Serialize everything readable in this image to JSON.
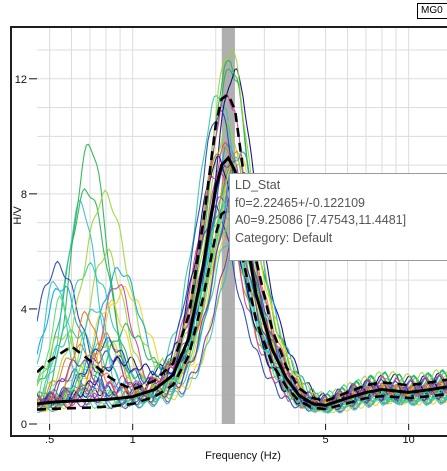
{
  "header": {
    "tag": "MG0"
  },
  "tooltip": {
    "title": "LD_Stat",
    "f0_line": "f0=2.22465+/-0.122109",
    "a0_line": "A0=9.25086 [7.47543,11.4481]",
    "category_line": "Category: Default"
  },
  "chart_data": {
    "type": "line",
    "title": "",
    "xlabel": "Frequency (Hz)",
    "ylabel": "H/V",
    "xscale": "log",
    "xlim": [
      0.45,
      14
    ],
    "ylim": [
      0,
      13.8
    ],
    "grid": true,
    "x_ticks": [
      0.5,
      1,
      5,
      10
    ],
    "x_tick_labels": [
      ".5",
      "1",
      "5",
      "10"
    ],
    "y_ticks": [
      0,
      4,
      8,
      12
    ],
    "y_tick_labels": [
      "0",
      "4",
      "8",
      "12"
    ],
    "peak_band": {
      "f0": 2.22465,
      "f0_min": 2.102541,
      "f0_max": 2.346759
    },
    "colors": {
      "grid": "#dcdcdc",
      "band": "#a6a6a6",
      "frame": "#1e1e1e",
      "mean": "#000000",
      "bounds": "#000000",
      "windows": [
        "#00a2e8",
        "#22b14c",
        "#9ad534",
        "#f0d020",
        "#1f3fb5",
        "#30c0c0",
        "#6b2fb0",
        "#4fe06f",
        "#e07a20",
        "#d03a9c",
        "#2ec99c",
        "#000080"
      ]
    },
    "series": [
      {
        "style": "solid-thick",
        "x": [
          0.45,
          0.5,
          0.6,
          0.7,
          0.8,
          0.9,
          1.0,
          1.2,
          1.4,
          1.6,
          1.8,
          2.0,
          2.1,
          2.22,
          2.35,
          2.5,
          2.8,
          3.2,
          3.6,
          4.0,
          4.5,
          5.0,
          6.0,
          7.0,
          8.0,
          10.0,
          12.0,
          14.0
        ],
        "y": [
          0.7,
          0.75,
          0.8,
          0.82,
          0.85,
          0.9,
          0.95,
          1.2,
          1.7,
          3.0,
          5.5,
          8.2,
          9.0,
          9.25,
          8.8,
          7.2,
          4.5,
          2.6,
          1.6,
          1.0,
          0.7,
          0.65,
          0.9,
          1.1,
          1.2,
          1.1,
          1.2,
          1.3
        ]
      },
      {
        "style": "dashed",
        "x": [
          0.45,
          0.5,
          0.6,
          0.7,
          0.8,
          0.9,
          1.0,
          1.2,
          1.4,
          1.6,
          1.8,
          2.0,
          2.1,
          2.22,
          2.35,
          2.5,
          2.8,
          3.2,
          3.6,
          4.0,
          4.5,
          5.0,
          6.0,
          7.0,
          8.0,
          10.0,
          12.0,
          14.0
        ],
        "y": [
          1.8,
          2.2,
          2.7,
          2.2,
          1.7,
          1.4,
          1.2,
          1.5,
          2.1,
          3.8,
          7.0,
          10.4,
          11.3,
          11.45,
          10.9,
          9.0,
          5.7,
          3.3,
          2.0,
          1.25,
          0.9,
          0.8,
          1.1,
          1.35,
          1.45,
          1.35,
          1.45,
          1.55
        ]
      },
      {
        "style": "dashed",
        "x": [
          0.45,
          0.5,
          0.6,
          0.7,
          0.8,
          0.9,
          1.0,
          1.2,
          1.4,
          1.6,
          1.8,
          2.0,
          2.1,
          2.22,
          2.35,
          2.5,
          2.8,
          3.2,
          3.6,
          4.0,
          4.5,
          5.0,
          6.0,
          7.0,
          8.0,
          10.0,
          12.0,
          14.0
        ],
        "y": [
          0.5,
          0.52,
          0.55,
          0.57,
          0.6,
          0.65,
          0.7,
          0.95,
          1.35,
          2.4,
          4.4,
          6.6,
          7.3,
          7.47,
          7.1,
          5.8,
          3.6,
          2.1,
          1.3,
          0.8,
          0.56,
          0.52,
          0.72,
          0.9,
          0.97,
          0.9,
          0.97,
          1.05
        ]
      }
    ]
  }
}
